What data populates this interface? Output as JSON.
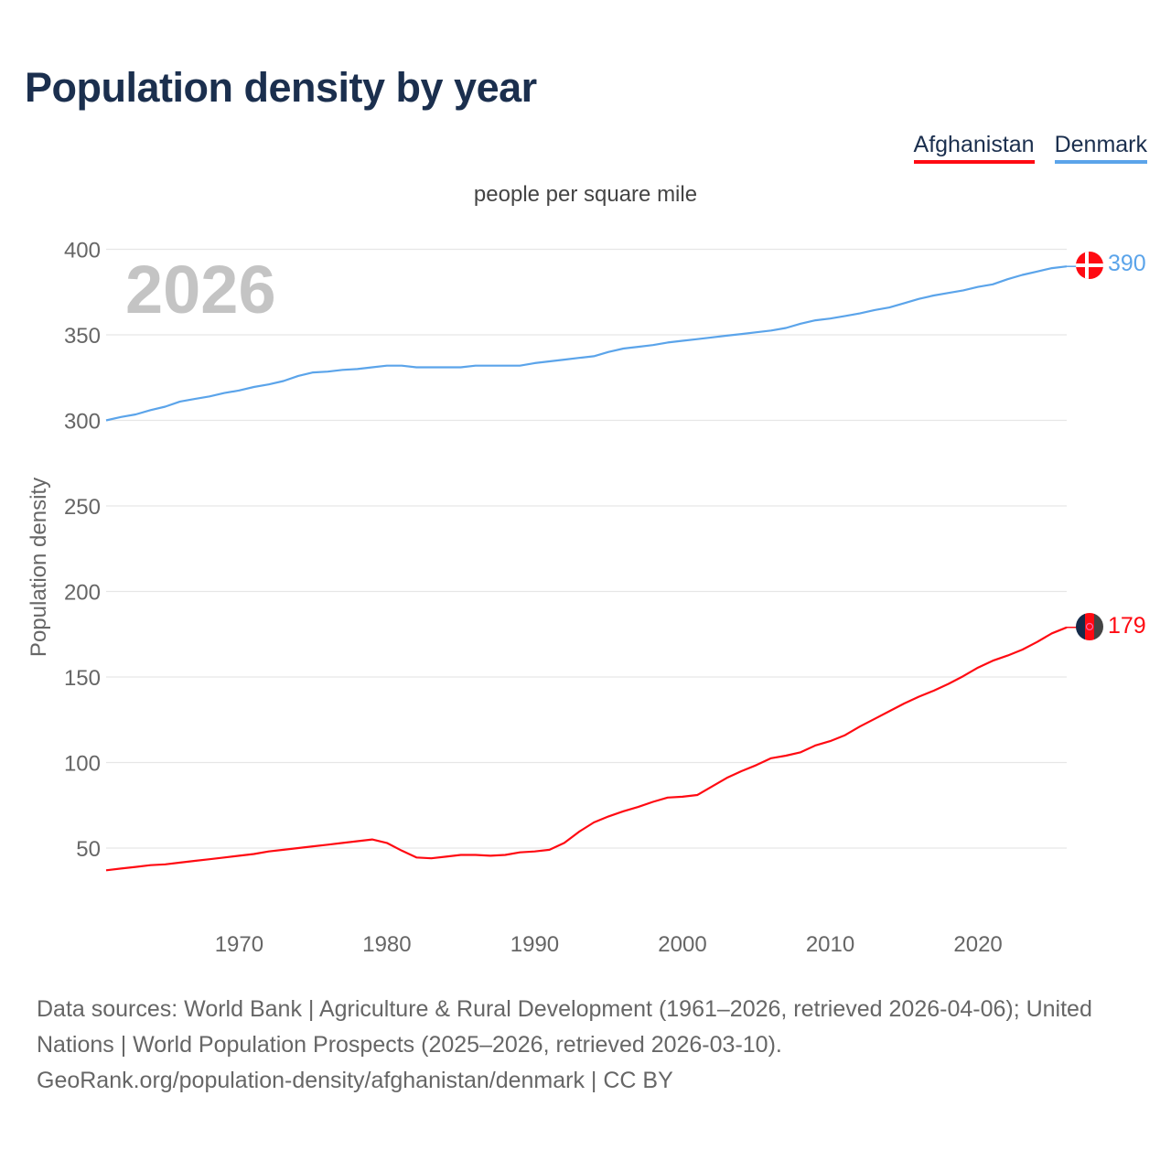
{
  "title": "Population density by year",
  "legend": [
    {
      "name": "Afghanistan",
      "color": "#ff0a12"
    },
    {
      "name": "Denmark",
      "color": "#5ba4ea"
    }
  ],
  "footer": {
    "line1": "Data sources: World Bank | Agriculture & Rural Development (1961–2026, retrieved 2026-04-06); United Nations | World Population Prospects (2025–2026, retrieved 2026-03-10).",
    "line2": "GeoRank.org/population-density/afghanistan/denmark | CC BY"
  },
  "chart_data": {
    "type": "line",
    "title": "Population density by year",
    "subtitle": "people per square mile",
    "ylabel": "Population density",
    "xlabel": "",
    "watermark_year": "2026",
    "xlim": [
      1961,
      2026
    ],
    "ylim": [
      0,
      400
    ],
    "yticks": [
      50,
      100,
      150,
      200,
      250,
      300,
      350,
      400
    ],
    "xticks": [
      1970,
      1980,
      1990,
      2000,
      2010,
      2020
    ],
    "grid": true,
    "legend_position": "top-right",
    "x": [
      1961,
      1962,
      1963,
      1964,
      1965,
      1966,
      1967,
      1968,
      1969,
      1970,
      1971,
      1972,
      1973,
      1974,
      1975,
      1976,
      1977,
      1978,
      1979,
      1980,
      1981,
      1982,
      1983,
      1984,
      1985,
      1986,
      1987,
      1988,
      1989,
      1990,
      1991,
      1992,
      1993,
      1994,
      1995,
      1996,
      1997,
      1998,
      1999,
      2000,
      2001,
      2002,
      2003,
      2004,
      2005,
      2006,
      2007,
      2008,
      2009,
      2010,
      2011,
      2012,
      2013,
      2014,
      2015,
      2016,
      2017,
      2018,
      2019,
      2020,
      2021,
      2022,
      2023,
      2024,
      2025,
      2026
    ],
    "series": [
      {
        "name": "Afghanistan",
        "color": "#ff0a12",
        "end_label": "179",
        "values": [
          37,
          38,
          39,
          40,
          40.5,
          41.5,
          42.5,
          43.5,
          44.5,
          45.5,
          46.5,
          48,
          49,
          50,
          51,
          52,
          53,
          54,
          55,
          53,
          48.5,
          44.5,
          44,
          45,
          46,
          46,
          45.5,
          46,
          47.5,
          48,
          49,
          53,
          59.5,
          65,
          68.5,
          71.5,
          74,
          77,
          79.5,
          80,
          81,
          86,
          91,
          95,
          98.5,
          102.5,
          104,
          106,
          110,
          112.5,
          116,
          121,
          125.5,
          130,
          134.5,
          138.5,
          142,
          146,
          150.5,
          155.5,
          159.5,
          162.5,
          166,
          170.5,
          175.5,
          179
        ]
      },
      {
        "name": "Denmark",
        "color": "#5ba4ea",
        "end_label": "390",
        "values": [
          300,
          302,
          303.5,
          306,
          308,
          311,
          312.5,
          314,
          316,
          317.5,
          319.5,
          321,
          323,
          326,
          328,
          328.5,
          329.5,
          330,
          331,
          332,
          332,
          331,
          331,
          331,
          331,
          332,
          332,
          332,
          332,
          333.5,
          334.5,
          335.5,
          336.5,
          337.5,
          340,
          342,
          343,
          344,
          345.5,
          346.5,
          347.5,
          348.5,
          349.5,
          350.5,
          351.5,
          352.5,
          354,
          356.5,
          358.5,
          359.5,
          361,
          362.5,
          364.5,
          366,
          368.5,
          371,
          373,
          374.5,
          376,
          378,
          379.5,
          382.5,
          385,
          387,
          389,
          390
        ]
      }
    ]
  }
}
